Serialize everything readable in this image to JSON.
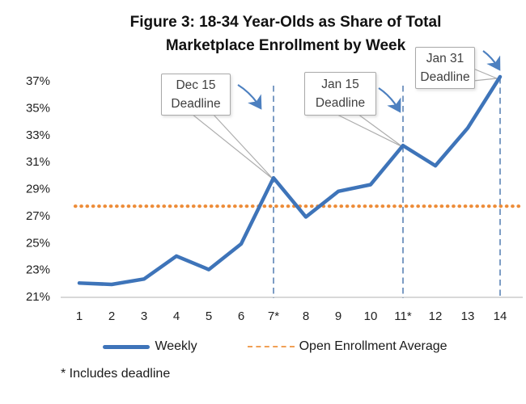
{
  "title": {
    "line1": "Figure 3: 18-34 Year-Olds as Share of Total",
    "line2": "Marketplace Enrollment by Week"
  },
  "legend": {
    "weekly_label": "Weekly",
    "average_label": "Open Enrollment Average"
  },
  "footnote": "* Includes deadline",
  "callouts": [
    {
      "id": "dec15",
      "line1": "Dec 15",
      "line2": "Deadline",
      "week": 7
    },
    {
      "id": "jan15",
      "line1": "Jan 15",
      "line2": "Deadline",
      "week": 11
    },
    {
      "id": "jan31",
      "line1": "Jan 31",
      "line2": "Deadline",
      "week": 14
    }
  ],
  "colors": {
    "weekly": "#3E74B9",
    "average": "#ED8C38",
    "deadline_dash": "#6E91BD",
    "arrow": "#4D80C0",
    "callout_border": "#ADADAD",
    "axis_line": "#C0C0C0",
    "tick_text": "#1F1F1F"
  },
  "chart_data": {
    "type": "line",
    "title": "Figure 3: 18-34 Year-Olds as Share of Total Marketplace Enrollment by Week",
    "x_labels": [
      "1",
      "2",
      "3",
      "4",
      "5",
      "6",
      "7*",
      "8",
      "9",
      "10",
      "11*",
      "12",
      "13",
      "14"
    ],
    "weeks": [
      1,
      2,
      3,
      4,
      5,
      6,
      7,
      8,
      9,
      10,
      11,
      12,
      13,
      14
    ],
    "series": [
      {
        "name": "Weekly",
        "values": [
          22.0,
          21.9,
          22.3,
          24.0,
          23.0,
          24.9,
          29.8,
          26.9,
          28.8,
          29.3,
          32.2,
          30.7,
          33.5,
          37.3
        ]
      }
    ],
    "reference_line": {
      "name": "Open Enrollment Average",
      "value": 27.7,
      "style": "dotted"
    },
    "deadline_lines": [
      {
        "week": 7,
        "label": "Dec 15 Deadline"
      },
      {
        "week": 11,
        "label": "Jan 15 Deadline"
      },
      {
        "week": 14,
        "label": "Jan 31 Deadline"
      }
    ],
    "ylim": [
      21,
      37
    ],
    "ytick_step": 2,
    "ytick_suffix": "%",
    "xlabel": "",
    "ylabel": "",
    "grid": false,
    "legend_position": "bottom",
    "footnote": "* Includes deadline"
  }
}
